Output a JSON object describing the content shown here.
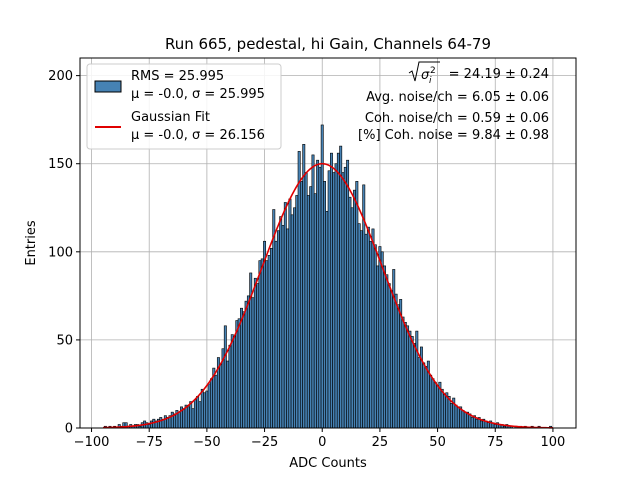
{
  "chart_data": {
    "type": "bar",
    "title": "Run 665, pedestal, hi Gain, Channels 64-79",
    "xlabel": "ADC Counts",
    "ylabel": "Entries",
    "xlim": [
      -105,
      110
    ],
    "ylim": [
      0,
      210
    ],
    "xticks": [
      -100,
      -75,
      -50,
      -25,
      0,
      25,
      50,
      75,
      100
    ],
    "xtick_labels": [
      "−100",
      "−75",
      "−50",
      "−25",
      "0",
      "25",
      "50",
      "75",
      "100"
    ],
    "yticks": [
      0,
      50,
      100,
      150,
      200
    ],
    "ytick_labels": [
      "0",
      "50",
      "100",
      "150",
      "200"
    ],
    "grid": true,
    "histogram": {
      "name": "RMS = 25.995",
      "bin_width": 1,
      "color": "#4682b4",
      "edge_color": "#000000",
      "bins": [
        [
          -94,
          1
        ],
        [
          -92,
          1
        ],
        [
          -90,
          1
        ],
        [
          -88,
          2
        ],
        [
          -87,
          1
        ],
        [
          -86,
          3
        ],
        [
          -85,
          3
        ],
        [
          -84,
          1
        ],
        [
          -83,
          2
        ],
        [
          -82,
          1
        ],
        [
          -81,
          2
        ],
        [
          -80,
          2
        ],
        [
          -79,
          1
        ],
        [
          -78,
          3
        ],
        [
          -77,
          4
        ],
        [
          -76,
          3
        ],
        [
          -75,
          2
        ],
        [
          -74,
          4
        ],
        [
          -73,
          5
        ],
        [
          -72,
          4
        ],
        [
          -71,
          5
        ],
        [
          -70,
          6
        ],
        [
          -69,
          5
        ],
        [
          -68,
          7
        ],
        [
          -67,
          6
        ],
        [
          -66,
          7
        ],
        [
          -65,
          9
        ],
        [
          -64,
          8
        ],
        [
          -63,
          10
        ],
        [
          -62,
          9
        ],
        [
          -61,
          12
        ],
        [
          -60,
          11
        ],
        [
          -59,
          13
        ],
        [
          -58,
          12
        ],
        [
          -57,
          15
        ],
        [
          -56,
          11
        ],
        [
          -55,
          16
        ],
        [
          -54,
          18
        ],
        [
          -53,
          15
        ],
        [
          -52,
          22
        ],
        [
          -51,
          20
        ],
        [
          -50,
          21
        ],
        [
          -49,
          25
        ],
        [
          -48,
          28
        ],
        [
          -47,
          34
        ],
        [
          -46,
          30
        ],
        [
          -45,
          40
        ],
        [
          -44,
          36
        ],
        [
          -43,
          45
        ],
        [
          -42,
          58
        ],
        [
          -41,
          38
        ],
        [
          -40,
          47
        ],
        [
          -39,
          53
        ],
        [
          -38,
          52
        ],
        [
          -37,
          61
        ],
        [
          -36,
          62
        ],
        [
          -35,
          68
        ],
        [
          -34,
          66
        ],
        [
          -33,
          72
        ],
        [
          -32,
          75
        ],
        [
          -31,
          88
        ],
        [
          -30,
          74
        ],
        [
          -29,
          85
        ],
        [
          -28,
          82
        ],
        [
          -27,
          95
        ],
        [
          -26,
          96
        ],
        [
          -25,
          106
        ],
        [
          -24,
          95
        ],
        [
          -23,
          98
        ],
        [
          -22,
          102
        ],
        [
          -21,
          124
        ],
        [
          -20,
          106
        ],
        [
          -19,
          112
        ],
        [
          -18,
          120
        ],
        [
          -17,
          115
        ],
        [
          -16,
          128
        ],
        [
          -15,
          113
        ],
        [
          -14,
          130
        ],
        [
          -13,
          121
        ],
        [
          -12,
          125
        ],
        [
          -11,
          132
        ],
        [
          -10,
          157
        ],
        [
          -9,
          140
        ],
        [
          -8,
          161
        ],
        [
          -7,
          145
        ],
        [
          -6,
          132
        ],
        [
          -5,
          137
        ],
        [
          -4,
          155
        ],
        [
          -3,
          133
        ],
        [
          -2,
          152
        ],
        [
          -1,
          148
        ],
        [
          0,
          172
        ],
        [
          1,
          140
        ],
        [
          2,
          123
        ],
        [
          3,
          146
        ],
        [
          4,
          156
        ],
        [
          5,
          145
        ],
        [
          6,
          150
        ],
        [
          7,
          156
        ],
        [
          8,
          160
        ],
        [
          9,
          145
        ],
        [
          10,
          148
        ],
        [
          11,
          152
        ],
        [
          12,
          131
        ],
        [
          13,
          125
        ],
        [
          14,
          135
        ],
        [
          15,
          140
        ],
        [
          16,
          116
        ],
        [
          17,
          112
        ],
        [
          18,
          138
        ],
        [
          19,
          110
        ],
        [
          20,
          114
        ],
        [
          21,
          106
        ],
        [
          22,
          113
        ],
        [
          23,
          104
        ],
        [
          24,
          92
        ],
        [
          25,
          103
        ],
        [
          26,
          100
        ],
        [
          27,
          92
        ],
        [
          28,
          87
        ],
        [
          29,
          82
        ],
        [
          30,
          78
        ],
        [
          31,
          90
        ],
        [
          32,
          76
        ],
        [
          33,
          70
        ],
        [
          34,
          73
        ],
        [
          35,
          63
        ],
        [
          36,
          60
        ],
        [
          37,
          58
        ],
        [
          38,
          55
        ],
        [
          39,
          52
        ],
        [
          40,
          48
        ],
        [
          41,
          55
        ],
        [
          42,
          40
        ],
        [
          43,
          46
        ],
        [
          44,
          37
        ],
        [
          45,
          35
        ],
        [
          46,
          38
        ],
        [
          47,
          30
        ],
        [
          48,
          28
        ],
        [
          49,
          26
        ],
        [
          50,
          24
        ],
        [
          51,
          26
        ],
        [
          52,
          22
        ],
        [
          53,
          19
        ],
        [
          54,
          20
        ],
        [
          55,
          18
        ],
        [
          56,
          14
        ],
        [
          57,
          17
        ],
        [
          58,
          13
        ],
        [
          59,
          12
        ],
        [
          60,
          12
        ],
        [
          61,
          10
        ],
        [
          62,
          9
        ],
        [
          63,
          9
        ],
        [
          64,
          8
        ],
        [
          65,
          6
        ],
        [
          66,
          7
        ],
        [
          67,
          5
        ],
        [
          68,
          6
        ],
        [
          69,
          4
        ],
        [
          70,
          5
        ],
        [
          71,
          4
        ],
        [
          72,
          3
        ],
        [
          73,
          4
        ],
        [
          74,
          3
        ],
        [
          75,
          2
        ],
        [
          76,
          3
        ],
        [
          77,
          2
        ],
        [
          78,
          2
        ],
        [
          79,
          1
        ],
        [
          80,
          2
        ],
        [
          81,
          1
        ],
        [
          82,
          1
        ],
        [
          84,
          1
        ],
        [
          86,
          1
        ],
        [
          88,
          1
        ],
        [
          91,
          1
        ],
        [
          94,
          1
        ],
        [
          99,
          1
        ]
      ]
    },
    "fit": {
      "name": "Gaussian Fit",
      "type": "line",
      "color": "#e00000",
      "mu": 0.0,
      "sigma": 26.156,
      "amplitude": 150,
      "x_range": [
        -95,
        100
      ]
    },
    "legend": {
      "position": "top-left",
      "entries": [
        {
          "label_line1": "RMS = 25.995",
          "label_line2": "μ = -0.0, σ = 25.995",
          "kind": "patch"
        },
        {
          "label_line1": "Gaussian Fit",
          "label_line2": "μ = -0.0, σ = 26.156",
          "kind": "line"
        }
      ]
    },
    "annotations": {
      "sigma_label": "= 24.19 ± 0.24",
      "avg_noise": "Avg. noise/ch = 6.05 ± 0.06",
      "coh_noise": "Coh. noise/ch = 0.59 ± 0.06",
      "pct_coh_noise": "[%] Coh. noise = 9.84 ± 0.98"
    }
  }
}
